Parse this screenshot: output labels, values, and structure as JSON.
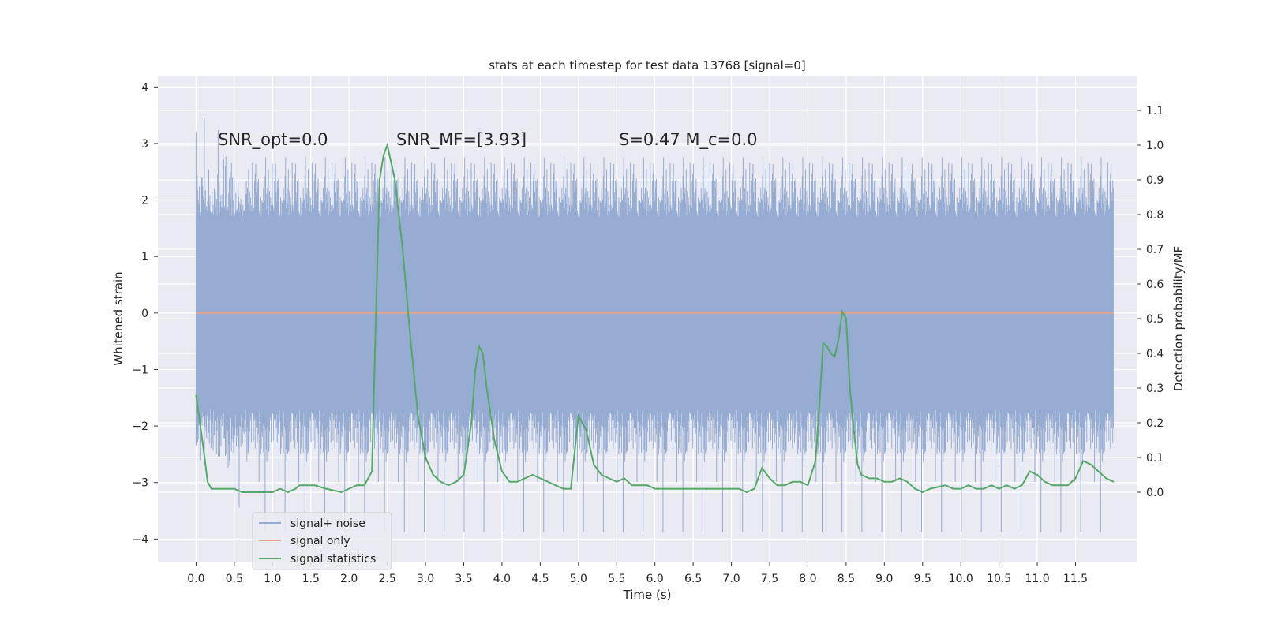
{
  "chart_data": {
    "type": "line",
    "title": "stats at each timestep for test data 13768 [signal=0]",
    "xlabel": "Time (s)",
    "ylabel": "Whitened strain",
    "ylabel_right": "Detection probability/MF",
    "xlim": [
      -0.5,
      12.3
    ],
    "ylim": [
      -4.4,
      4.2
    ],
    "ylim_right": [
      -0.2,
      1.2
    ],
    "x_ticks": [
      0.0,
      0.5,
      1.0,
      1.5,
      2.0,
      2.5,
      3.0,
      3.5,
      4.0,
      4.5,
      5.0,
      5.5,
      6.0,
      6.5,
      7.0,
      7.5,
      8.0,
      8.5,
      9.0,
      9.5,
      10.0,
      10.5,
      11.0,
      11.5
    ],
    "x_tick_labels": [
      "0.0",
      "0.5",
      "1.0",
      "1.5",
      "2.0",
      "2.5",
      "3.0",
      "3.5",
      "4.0",
      "4.5",
      "5.0",
      "5.5",
      "6.0",
      "6.5",
      "7.0",
      "7.5",
      "8.0",
      "8.5",
      "9.0",
      "9.5",
      "10.0",
      "10.5",
      "11.0",
      "11.5"
    ],
    "y_ticks": [
      -4,
      -3,
      -2,
      -1,
      0,
      1,
      2,
      3,
      4
    ],
    "y_tick_labels": [
      "−4",
      "−3",
      "−2",
      "−1",
      "0",
      "1",
      "2",
      "3",
      "4"
    ],
    "y_right_ticks": [
      0.0,
      0.1,
      0.2,
      0.3,
      0.4,
      0.5,
      0.6,
      0.7,
      0.8,
      0.9,
      1.0,
      1.1
    ],
    "y_right_tick_labels": [
      "0.0",
      "0.1",
      "0.2",
      "0.3",
      "0.4",
      "0.5",
      "0.6",
      "0.7",
      "0.8",
      "0.9",
      "1.0",
      "1.1"
    ],
    "grid": true,
    "legend_position": "bottom-left",
    "annotations": [
      "SNR_opt=0.0",
      "SNR_MF=[3.93]",
      "S=0.47   M_c=0.0"
    ],
    "series": [
      {
        "name": "signal+ noise",
        "axis": "left",
        "color": "#97acd2",
        "kind": "whitened noise, 0.0–12.0 s, amplitude approx. ±1.7 (peaks to about 3.8 / −4.1)",
        "x_range": [
          0.0,
          12.0
        ]
      },
      {
        "name": "signal only",
        "axis": "left",
        "color": "#e8a58a",
        "x": [
          0.0,
          12.0
        ],
        "values": [
          0.0,
          0.0
        ]
      },
      {
        "name": "signal statistics",
        "axis": "right",
        "color": "#55a868",
        "x": [
          0.0,
          0.05,
          0.1,
          0.15,
          0.2,
          0.25,
          0.3,
          0.4,
          0.5,
          0.6,
          0.7,
          0.8,
          0.9,
          1.0,
          1.1,
          1.2,
          1.3,
          1.35,
          1.45,
          1.55,
          1.7,
          1.9,
          2.0,
          2.1,
          2.15,
          2.2,
          2.3,
          2.35,
          2.4,
          2.45,
          2.5,
          2.55,
          2.6,
          2.7,
          2.8,
          2.9,
          3.0,
          3.1,
          3.2,
          3.3,
          3.4,
          3.5,
          3.6,
          3.65,
          3.7,
          3.75,
          3.8,
          3.9,
          4.0,
          4.1,
          4.2,
          4.3,
          4.4,
          4.5,
          4.6,
          4.7,
          4.8,
          4.9,
          5.0,
          5.1,
          5.2,
          5.3,
          5.4,
          5.5,
          5.6,
          5.7,
          5.8,
          5.9,
          6.0,
          6.2,
          6.5,
          6.8,
          7.0,
          7.1,
          7.2,
          7.3,
          7.4,
          7.5,
          7.6,
          7.7,
          7.8,
          7.9,
          8.0,
          8.1,
          8.15,
          8.2,
          8.25,
          8.3,
          8.35,
          8.4,
          8.45,
          8.5,
          8.55,
          8.6,
          8.65,
          8.7,
          8.8,
          8.9,
          9.0,
          9.1,
          9.2,
          9.3,
          9.4,
          9.5,
          9.6,
          9.8,
          9.9,
          10.0,
          10.1,
          10.2,
          10.3,
          10.4,
          10.5,
          10.6,
          10.7,
          10.8,
          10.9,
          11.0,
          11.1,
          11.2,
          11.3,
          11.4,
          11.5,
          11.6,
          11.7,
          11.8,
          11.9,
          12.0
        ],
        "values": [
          0.28,
          0.2,
          0.12,
          0.03,
          0.01,
          0.01,
          0.01,
          0.01,
          0.01,
          0.0,
          0.0,
          0.0,
          0.0,
          0.0,
          0.01,
          0.0,
          0.01,
          0.02,
          0.02,
          0.02,
          0.01,
          0.0,
          0.01,
          0.02,
          0.02,
          0.02,
          0.06,
          0.5,
          0.9,
          0.97,
          1.0,
          0.95,
          0.9,
          0.7,
          0.45,
          0.22,
          0.1,
          0.05,
          0.03,
          0.02,
          0.03,
          0.05,
          0.2,
          0.35,
          0.42,
          0.4,
          0.3,
          0.15,
          0.06,
          0.03,
          0.03,
          0.04,
          0.05,
          0.04,
          0.03,
          0.02,
          0.01,
          0.01,
          0.22,
          0.18,
          0.08,
          0.05,
          0.04,
          0.03,
          0.04,
          0.02,
          0.02,
          0.02,
          0.01,
          0.01,
          0.01,
          0.01,
          0.01,
          0.01,
          0.0,
          0.01,
          0.07,
          0.04,
          0.02,
          0.02,
          0.03,
          0.03,
          0.02,
          0.09,
          0.25,
          0.43,
          0.42,
          0.4,
          0.39,
          0.44,
          0.52,
          0.5,
          0.3,
          0.18,
          0.08,
          0.05,
          0.04,
          0.04,
          0.03,
          0.03,
          0.04,
          0.03,
          0.01,
          0.0,
          0.01,
          0.02,
          0.01,
          0.01,
          0.02,
          0.01,
          0.01,
          0.02,
          0.01,
          0.02,
          0.01,
          0.02,
          0.06,
          0.05,
          0.03,
          0.02,
          0.02,
          0.02,
          0.04,
          0.09,
          0.08,
          0.06,
          0.04,
          0.03
        ]
      }
    ]
  }
}
